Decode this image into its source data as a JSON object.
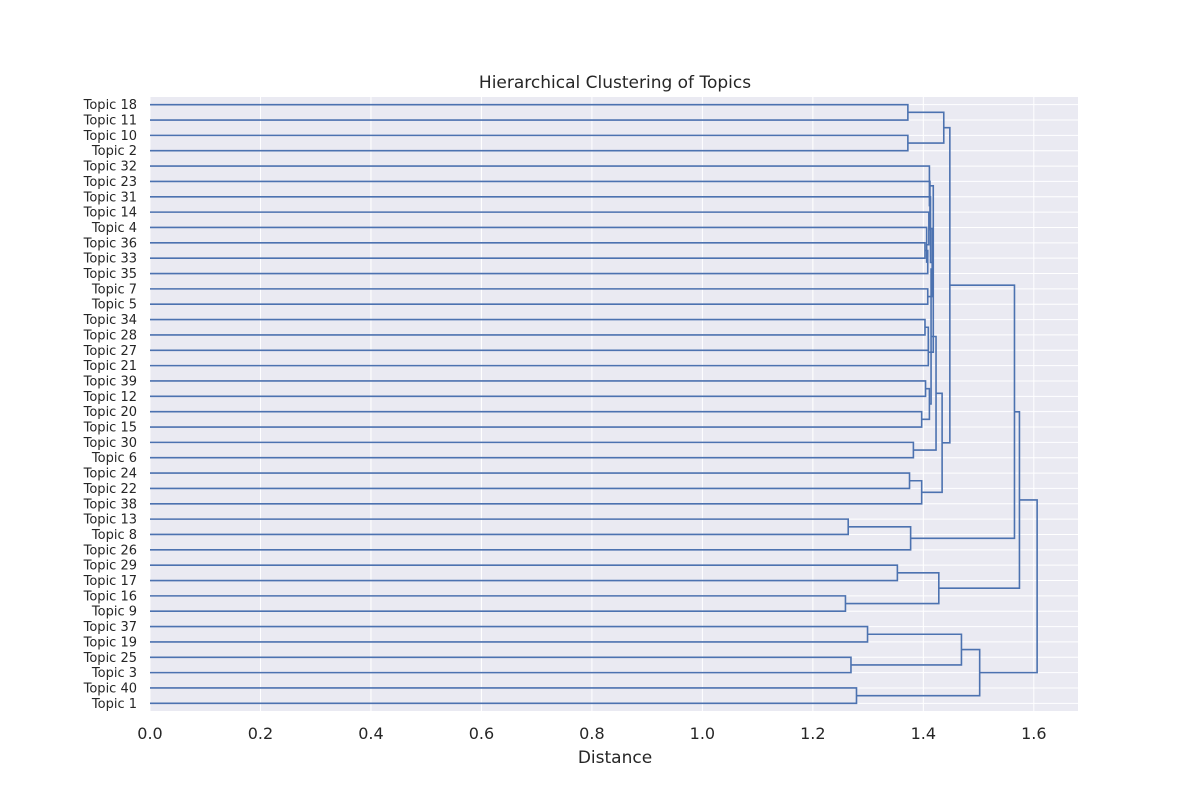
{
  "chart_data": {
    "type": "dendrogram",
    "title": "Hierarchical Clustering of Topics",
    "xlabel": "Distance",
    "ylabel": "",
    "orientation": "horizontal",
    "xlim": [
      0,
      1.68
    ],
    "xticks": [
      0.0,
      0.2,
      0.4,
      0.6,
      0.8,
      1.0,
      1.2,
      1.4,
      1.6
    ],
    "grid": true,
    "colors": {
      "background": "#EAEAF2",
      "grid": "#FFFFFF",
      "link": "#4C72B0",
      "text": "#262626"
    },
    "leaves": [
      "Topic 18",
      "Topic 11",
      "Topic 10",
      "Topic 2",
      "Topic 32",
      "Topic 23",
      "Topic 31",
      "Topic 14",
      "Topic 4",
      "Topic 36",
      "Topic 33",
      "Topic 35",
      "Topic 7",
      "Topic 5",
      "Topic 34",
      "Topic 28",
      "Topic 27",
      "Topic 21",
      "Topic 39",
      "Topic 12",
      "Topic 20",
      "Topic 15",
      "Topic 30",
      "Topic 6",
      "Topic 24",
      "Topic 22",
      "Topic 38",
      "Topic 13",
      "Topic 8",
      "Topic 26",
      "Topic 29",
      "Topic 17",
      "Topic 16",
      "Topic 9",
      "Topic 37",
      "Topic 19",
      "Topic 25",
      "Topic 3",
      "Topic 40",
      "Topic 1"
    ],
    "merges": [
      {
        "id": "n1",
        "left": "Topic 18",
        "right": "Topic 11",
        "distance": 1.372
      },
      {
        "id": "n2",
        "left": "Topic 10",
        "right": "Topic 2",
        "distance": 1.372
      },
      {
        "id": "n3",
        "left": "n1",
        "right": "n2",
        "distance": 1.437
      },
      {
        "id": "n4",
        "left": "Topic 36",
        "right": "Topic 33",
        "distance": 1.403
      },
      {
        "id": "n5",
        "left": "n4",
        "right": "Topic 35",
        "distance": 1.408
      },
      {
        "id": "n6",
        "left": "Topic 4",
        "right": "n5",
        "distance": 1.406
      },
      {
        "id": "n7",
        "left": "Topic 14",
        "right": "n6",
        "distance": 1.41
      },
      {
        "id": "n8",
        "left": "Topic 7",
        "right": "Topic 5",
        "distance": 1.408
      },
      {
        "id": "n9",
        "left": "n7",
        "right": "n8",
        "distance": 1.416
      },
      {
        "id": "n10",
        "left": "Topic 31",
        "right": "n9",
        "distance": 1.413
      },
      {
        "id": "n11",
        "left": "Topic 23",
        "right": "n10",
        "distance": 1.412
      },
      {
        "id": "n12",
        "left": "Topic 32",
        "right": "n11",
        "distance": 1.411
      },
      {
        "id": "n13",
        "left": "Topic 34",
        "right": "Topic 28",
        "distance": 1.403
      },
      {
        "id": "n14",
        "left": "n13",
        "right": "Topic 27",
        "distance": 1.409
      },
      {
        "id": "n15",
        "left": "n14",
        "right": "Topic 21",
        "distance": 1.409
      },
      {
        "id": "n16",
        "left": "n12",
        "right": "n15",
        "distance": 1.418
      },
      {
        "id": "n17",
        "left": "Topic 39",
        "right": "Topic 12",
        "distance": 1.404
      },
      {
        "id": "n18",
        "left": "Topic 20",
        "right": "Topic 15",
        "distance": 1.397
      },
      {
        "id": "n19",
        "left": "n17",
        "right": "n18",
        "distance": 1.411
      },
      {
        "id": "n20",
        "left": "n16",
        "right": "n19",
        "distance": 1.414
      },
      {
        "id": "n21",
        "left": "Topic 30",
        "right": "Topic 6",
        "distance": 1.382
      },
      {
        "id": "n22",
        "left": "n20",
        "right": "n21",
        "distance": 1.423
      },
      {
        "id": "n23",
        "left": "Topic 24",
        "right": "Topic 22",
        "distance": 1.375
      },
      {
        "id": "n24",
        "left": "n23",
        "right": "Topic 38",
        "distance": 1.397
      },
      {
        "id": "n25",
        "left": "n22",
        "right": "n24",
        "distance": 1.434
      },
      {
        "id": "n26",
        "left": "n3",
        "right": "n25",
        "distance": 1.448
      },
      {
        "id": "n27",
        "left": "Topic 13",
        "right": "Topic 8",
        "distance": 1.264
      },
      {
        "id": "n28",
        "left": "n27",
        "right": "Topic 26",
        "distance": 1.377
      },
      {
        "id": "n29",
        "left": "n26",
        "right": "n28",
        "distance": 1.565
      },
      {
        "id": "n30",
        "left": "Topic 29",
        "right": "Topic 17",
        "distance": 1.353
      },
      {
        "id": "n31",
        "left": "Topic 16",
        "right": "Topic 9",
        "distance": 1.259
      },
      {
        "id": "n32",
        "left": "n30",
        "right": "n31",
        "distance": 1.428
      },
      {
        "id": "n33",
        "left": "n29",
        "right": "n32",
        "distance": 1.574
      },
      {
        "id": "n34",
        "left": "Topic 37",
        "right": "Topic 19",
        "distance": 1.299
      },
      {
        "id": "n35",
        "left": "Topic 25",
        "right": "Topic 3",
        "distance": 1.269
      },
      {
        "id": "n36",
        "left": "n34",
        "right": "n35",
        "distance": 1.469
      },
      {
        "id": "n37",
        "left": "Topic 40",
        "right": "Topic 1",
        "distance": 1.279
      },
      {
        "id": "n38",
        "left": "n36",
        "right": "n37",
        "distance": 1.502
      },
      {
        "id": "n39",
        "left": "n33",
        "right": "n38",
        "distance": 1.606
      }
    ]
  }
}
